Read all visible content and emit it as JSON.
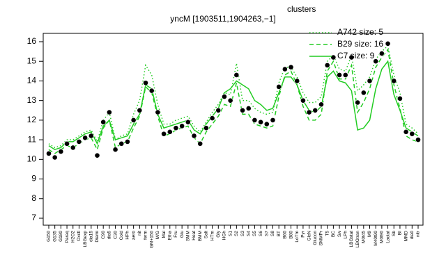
{
  "chart_data": {
    "type": "line",
    "title": "yncM [1903511,1904263,−1]",
    "categories": [
      "G150",
      "G135",
      "G180",
      "Paraq",
      "H2O2",
      "Oxctl",
      "LBGexp",
      "dia15",
      "Diami",
      "C90",
      "dia5",
      "C30",
      "Cold",
      "HPh",
      "aero",
      "nit",
      "ferm",
      "GM+150",
      "M/G",
      "Mal",
      "Etha",
      "Fru",
      "Glu",
      "SMM",
      "Heat",
      "BMM",
      "Salt",
      "HTm",
      "Gly",
      "HGh",
      "S1",
      "S2",
      "S3",
      "S4",
      "S5",
      "S6",
      "S7",
      "S8",
      "BT",
      "B60",
      "B80",
      "LoTm",
      "Pyr",
      "GlcN",
      "Glucon",
      "SMMPr",
      "T5",
      "BC",
      "Sw",
      "LPh",
      "LBGstat",
      "LBGtran",
      "M0t45",
      "M9",
      "M40t90",
      "M0t90",
      "Lactat",
      "Sb",
      "BI",
      "MMD",
      "dia0",
      "nitr"
    ],
    "values": [
      10.3,
      10.1,
      10.4,
      10.8,
      10.6,
      10.9,
      11.1,
      11.2,
      10.2,
      11.9,
      12.4,
      10.5,
      10.8,
      10.9,
      12.0,
      12.5,
      13.9,
      13.5,
      12.4,
      11.3,
      11.4,
      11.6,
      11.7,
      11.9,
      11.2,
      10.8,
      11.6,
      12.1,
      12.5,
      13.2,
      13.0,
      14.3,
      12.5,
      12.6,
      12.0,
      11.9,
      11.8,
      12.0,
      13.7,
      14.6,
      14.7,
      14.0,
      13.0,
      12.4,
      12.5,
      12.8,
      14.8,
      15.2,
      14.3,
      14.3,
      15.2,
      12.9,
      13.4,
      14.0,
      15.0,
      15.4,
      15.9,
      14.0,
      13.1,
      11.4,
      11.3,
      11.0
    ],
    "color": "#000000",
    "legend_title": "clusters",
    "series": [
      {
        "name": "A742 size: 5",
        "color": "#22cc22",
        "dash": "dotted",
        "values": [
          10.8,
          10.6,
          10.7,
          11.0,
          11.0,
          11.2,
          11.4,
          11.5,
          10.9,
          12.0,
          12.4,
          11.0,
          11.2,
          11.3,
          12.3,
          13.0,
          14.8,
          14.3,
          12.8,
          11.8,
          11.8,
          12.0,
          12.1,
          12.2,
          11.7,
          11.4,
          11.9,
          12.4,
          12.8,
          13.4,
          13.3,
          14.9,
          13.0,
          13.0,
          12.6,
          12.4,
          12.3,
          12.4,
          13.9,
          14.7,
          14.7,
          14.2,
          13.4,
          12.9,
          12.9,
          13.2,
          15.0,
          15.3,
          14.6,
          14.5,
          15.3,
          13.5,
          13.8,
          14.2,
          15.1,
          15.5,
          15.8,
          14.3,
          13.4,
          11.8,
          11.6,
          11.3
        ]
      },
      {
        "name": "B29 size: 16",
        "color": "#22cc22",
        "dash": "dashed",
        "values": [
          10.5,
          10.3,
          10.5,
          10.7,
          10.6,
          10.8,
          11.0,
          11.1,
          10.5,
          11.6,
          12.0,
          10.6,
          10.8,
          10.9,
          11.6,
          12.2,
          13.7,
          13.4,
          12.2,
          11.2,
          11.3,
          11.5,
          11.6,
          11.7,
          11.1,
          10.8,
          11.4,
          11.8,
          12.2,
          12.8,
          12.7,
          13.9,
          12.3,
          12.3,
          11.8,
          11.7,
          11.6,
          11.7,
          13.2,
          14.3,
          14.5,
          13.8,
          12.7,
          12.0,
          12.0,
          12.3,
          14.5,
          15.0,
          14.1,
          14.1,
          14.8,
          12.4,
          12.9,
          13.6,
          14.7,
          15.2,
          15.6,
          13.8,
          12.6,
          11.2,
          11.0,
          10.9
        ]
      },
      {
        "name": "C7 size: 9",
        "color": "#22cc22",
        "dash": "solid",
        "values": [
          10.7,
          10.5,
          10.6,
          10.9,
          10.9,
          11.1,
          11.3,
          11.4,
          10.8,
          11.7,
          12.0,
          11.0,
          11.1,
          11.2,
          11.8,
          12.3,
          13.8,
          13.6,
          12.3,
          11.6,
          11.7,
          11.8,
          11.9,
          12.0,
          11.5,
          11.3,
          11.8,
          12.2,
          12.6,
          13.4,
          13.6,
          14.0,
          13.8,
          13.6,
          13.0,
          12.8,
          12.5,
          12.6,
          13.4,
          14.2,
          14.2,
          13.8,
          13.0,
          12.5,
          12.4,
          12.7,
          14.2,
          14.5,
          14.0,
          13.9,
          13.5,
          11.5,
          11.6,
          12.0,
          13.6,
          14.6,
          15.0,
          13.3,
          12.5,
          11.6,
          11.4,
          11.2
        ]
      }
    ],
    "ylim": [
      7,
      16
    ],
    "yticks": [
      7,
      8,
      9,
      10,
      11,
      12,
      13,
      14,
      15,
      16
    ]
  }
}
